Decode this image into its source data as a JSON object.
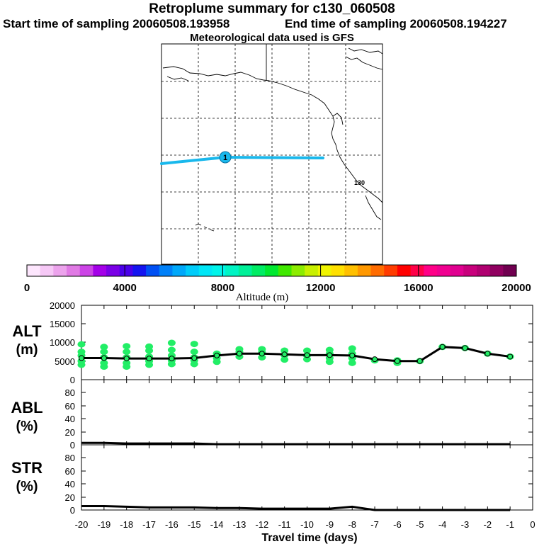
{
  "header": {
    "title": "Retroplume summary for c130_060508",
    "start_sampling": "Start time of sampling 20060508.193958",
    "end_sampling": "End time of sampling 20060508.194227",
    "met_data": "Meteorological data used is GFS"
  },
  "map": {
    "marker_label": "1",
    "city_label": "130",
    "track_color": "#19b8ec",
    "marker_color": "#19b8ec"
  },
  "colorbar": {
    "label": "Altitude (m)",
    "ticks": [
      "0",
      "4000",
      "8000",
      "12000",
      "16000",
      "20000"
    ],
    "colors": [
      "#fde6fd",
      "#f6c8f6",
      "#eca3ec",
      "#e07ae4",
      "#cc44e6",
      "#a400e8",
      "#7a00e6",
      "#4a00ea",
      "#1414f0",
      "#0050f4",
      "#0080f8",
      "#00a8fa",
      "#00ccfa",
      "#00e6f6",
      "#00f4ea",
      "#00f4c4",
      "#00f098",
      "#00ec64",
      "#00e830",
      "#40e800",
      "#8cec00",
      "#c8f000",
      "#f0f400",
      "#ffe000",
      "#ffc000",
      "#ff9800",
      "#ff6c00",
      "#ff3c00",
      "#ff0000",
      "#ff0048",
      "#ff0088",
      "#f00090",
      "#e00090",
      "#c8007c",
      "#b00070",
      "#900060",
      "#700050"
    ]
  },
  "chart_data": [
    {
      "type": "line",
      "name": "ALT",
      "ylabel": "ALT",
      "yunit": "(m)",
      "ylim": [
        0,
        20000
      ],
      "yticks": [
        "20000",
        "15000",
        "10000",
        "5000",
        "0"
      ],
      "x": [
        -20,
        -19,
        -18,
        -17,
        -16,
        -15,
        -14,
        -13,
        -12,
        -11,
        -10,
        -9,
        -8,
        -7,
        -6,
        -5,
        -4,
        -3,
        -2,
        -1
      ],
      "values": [
        5800,
        5800,
        5700,
        5700,
        5700,
        5800,
        6500,
        7000,
        7000,
        6800,
        6600,
        6600,
        6500,
        5500,
        5000,
        5000,
        8800,
        8500,
        7000,
        6200
      ],
      "marker_color": "#22ee66",
      "dot_clusters": [
        {
          "x": -20,
          "y": [
            4000,
            5000,
            6500,
            7500,
            9500
          ]
        },
        {
          "x": -19,
          "y": [
            3500,
            4500,
            6000,
            7500,
            8800
          ]
        },
        {
          "x": -18,
          "y": [
            3500,
            4500,
            6000,
            7500,
            9000
          ]
        },
        {
          "x": -17,
          "y": [
            4000,
            5000,
            6200,
            7800,
            8900
          ]
        },
        {
          "x": -16,
          "y": [
            4200,
            5200,
            6500,
            8000,
            9900
          ]
        },
        {
          "x": -15,
          "y": [
            4200,
            5200,
            6000,
            7500,
            9600
          ]
        },
        {
          "x": -14,
          "y": [
            4800,
            5800,
            7000
          ]
        },
        {
          "x": -13,
          "y": [
            6200,
            7500,
            8200
          ]
        },
        {
          "x": -12,
          "y": [
            6000,
            7300,
            8200
          ]
        },
        {
          "x": -11,
          "y": [
            5400,
            6600,
            7800
          ]
        },
        {
          "x": -10,
          "y": [
            5500,
            6500,
            7800
          ]
        },
        {
          "x": -9,
          "y": [
            4800,
            5800,
            7000,
            8000
          ]
        },
        {
          "x": -8,
          "y": [
            4500,
            5800,
            7000,
            8400
          ]
        },
        {
          "x": -7,
          "y": [
            5200
          ]
        },
        {
          "x": -6,
          "y": [
            4500,
            5200
          ]
        },
        {
          "x": -5,
          "y": [
            5000
          ]
        },
        {
          "x": -4,
          "y": [
            8800
          ]
        },
        {
          "x": -3,
          "y": [
            8500
          ]
        },
        {
          "x": -2,
          "y": [
            7000
          ]
        },
        {
          "x": -1,
          "y": [
            6200
          ]
        }
      ]
    },
    {
      "type": "line",
      "name": "ABL",
      "ylabel": "ABL",
      "yunit": "(%)",
      "ylim": [
        0,
        100
      ],
      "yticks": [
        "80",
        "60",
        "40",
        "20",
        "0"
      ],
      "x": [
        -20,
        -19,
        -18,
        -17,
        -16,
        -15,
        -14,
        -13,
        -12,
        -11,
        -10,
        -9,
        -8,
        -7,
        -6,
        -5,
        -4,
        -3,
        -2,
        -1
      ],
      "values": [
        3,
        3,
        2,
        2,
        2,
        2,
        1,
        1,
        1,
        1,
        1,
        1,
        1,
        1,
        1,
        1,
        1,
        1,
        1,
        1
      ]
    },
    {
      "type": "line",
      "name": "STR",
      "ylabel": "STR",
      "yunit": "(%)",
      "ylim": [
        0,
        100
      ],
      "yticks": [
        "80",
        "60",
        "40",
        "20",
        "0"
      ],
      "x": [
        -20,
        -19,
        -18,
        -17,
        -16,
        -15,
        -14,
        -13,
        -12,
        -11,
        -10,
        -9,
        -8,
        -7,
        -6,
        -5,
        -4,
        -3,
        -2,
        -1
      ],
      "values": [
        6,
        6,
        5,
        4,
        4,
        4,
        3,
        3,
        2,
        2,
        2,
        2,
        5,
        0,
        0,
        0,
        0,
        0,
        0,
        0
      ]
    }
  ],
  "xaxis": {
    "label": "Travel time (days)",
    "ticks": [
      "-20",
      "-19",
      "-18",
      "-17",
      "-16",
      "-15",
      "-14",
      "-13",
      "-12",
      "-11",
      "-10",
      "-9",
      "-8",
      "-7",
      "-6",
      "-5",
      "-4",
      "-3",
      "-2",
      "-1",
      "0"
    ]
  }
}
